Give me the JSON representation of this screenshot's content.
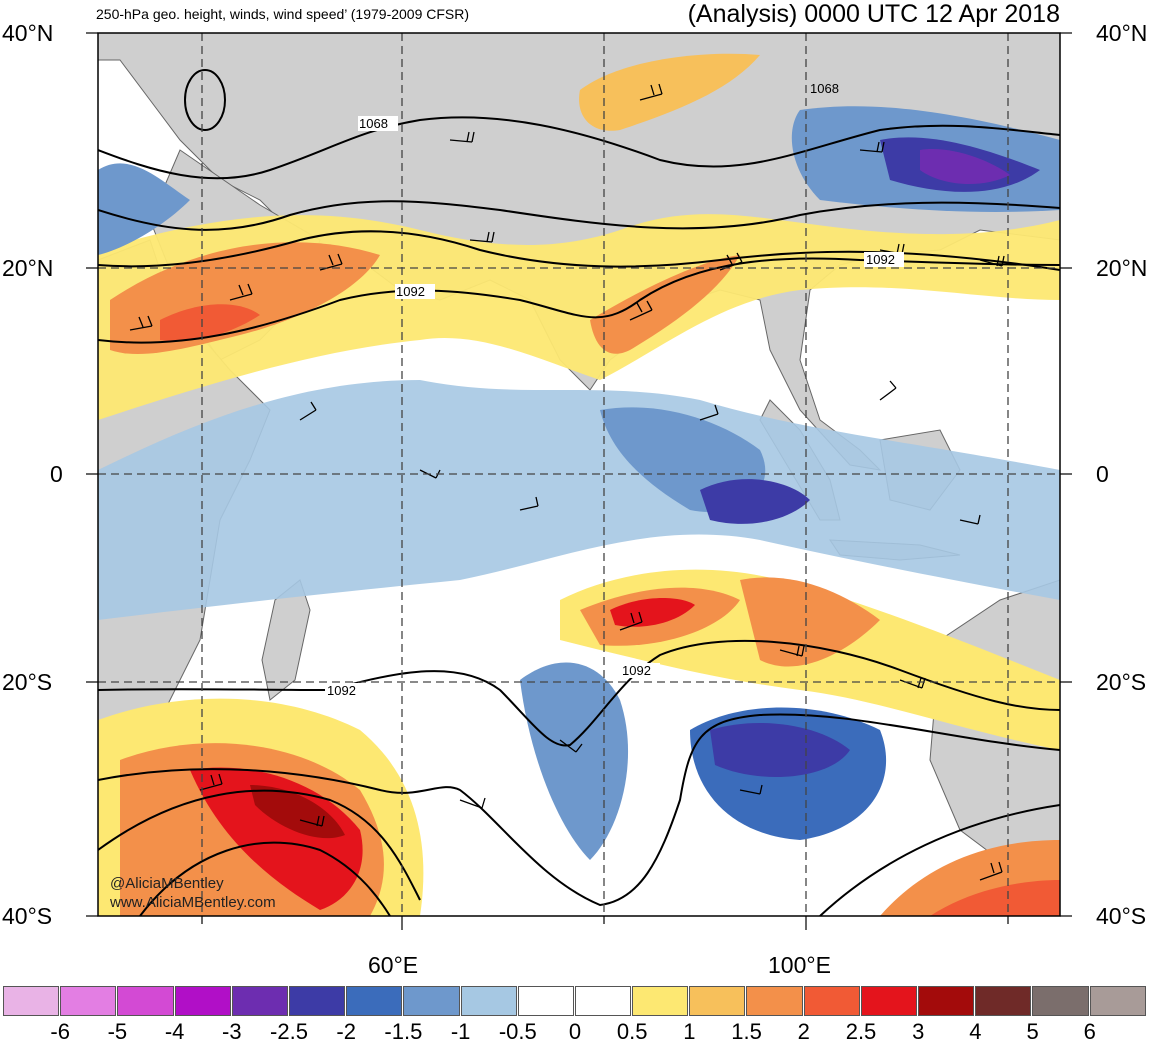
{
  "header": {
    "left_title": "250-hPa geo. height, winds, wind speed’ (1979-2009 CFSR)",
    "right_title": "(Analysis) 0000 UTC 12 Apr 2018"
  },
  "axes": {
    "lat_labels_left": [
      "40°N",
      "20°N",
      "0",
      "20°S",
      "40°S"
    ],
    "lat_labels_right": [
      "40°N",
      "20°N",
      "0",
      "20°S",
      "40°S"
    ],
    "lon_labels": [
      "60°E",
      "100°E"
    ]
  },
  "contour_labels": [
    "1068",
    "1068",
    "1092",
    "1092",
    "1092",
    "1092"
  ],
  "colorbar": {
    "colors": [
      "#e9b3e6",
      "#e37ee3",
      "#d34ad4",
      "#b10fc7",
      "#6d2db0",
      "#3d3ba6",
      "#3b6cbb",
      "#6e98cc",
      "#a6c8e3",
      "#ffffff",
      "#ffffff",
      "#fde872",
      "#f7c05b",
      "#f3904a",
      "#f15a35",
      "#e4141c",
      "#a30b0b",
      "#6f2a28",
      "#7b6e6c",
      "#a89b98"
    ],
    "labels": [
      "-6",
      "-5",
      "-4",
      "-3",
      "-2.5",
      "-2",
      "-1.5",
      "-1",
      "-0.5",
      "0",
      "0.5",
      "1",
      "1.5",
      "2",
      "2.5",
      "3",
      "4",
      "5",
      "6"
    ]
  },
  "credit": {
    "handle": "@AliciaMBentley",
    "url": "www.AliciaMBentley.com"
  },
  "style": {
    "land_color": "#cfcfcf",
    "ocean_color": "#ffffff"
  }
}
